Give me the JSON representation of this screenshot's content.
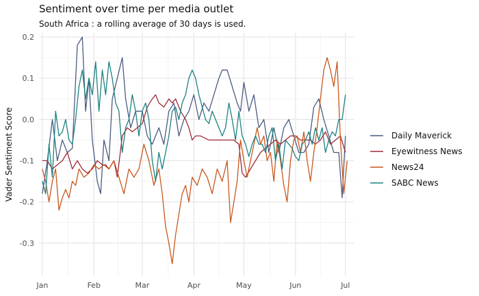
{
  "chart_data": {
    "type": "line",
    "title": "Sentiment over time per media outlet",
    "subtitle": "South Africa : a rolling average of 30 days is used.",
    "xlabel": "",
    "ylabel": "Vader Sentiment Score",
    "x_ticks": [
      "Jan",
      "Feb",
      "Mar",
      "Apr",
      "May",
      "Jun",
      "Jul"
    ],
    "y_ticks": [
      "0.2",
      "0.1",
      "0.0",
      "-0.1",
      "-0.2",
      "-0.3"
    ],
    "ylim": [
      -0.38,
      0.21
    ],
    "xlim_days": [
      -2,
      187
    ],
    "grid": true,
    "legend_position": "right",
    "series": [
      {
        "name": "Daily Maverick",
        "color": "#4a5a80",
        "points": [
          [
            0,
            -0.18
          ],
          [
            3,
            -0.1
          ],
          [
            6,
            0.0
          ],
          [
            9,
            -0.1
          ],
          [
            12,
            -0.05
          ],
          [
            15,
            -0.08
          ],
          [
            18,
            -0.07
          ],
          [
            21,
            0.18
          ],
          [
            24,
            0.2
          ],
          [
            26,
            0.02
          ],
          [
            28,
            0.1
          ],
          [
            30,
            -0.05
          ],
          [
            33,
            -0.15
          ],
          [
            35,
            -0.18
          ],
          [
            37,
            -0.05
          ],
          [
            40,
            -0.1
          ],
          [
            42,
            0.05
          ],
          [
            45,
            0.1
          ],
          [
            48,
            0.15
          ],
          [
            50,
            0.05
          ],
          [
            53,
            -0.02
          ],
          [
            56,
            0.02
          ],
          [
            60,
            0.02
          ],
          [
            63,
            -0.04
          ],
          [
            66,
            -0.06
          ],
          [
            70,
            -0.02
          ],
          [
            73,
            -0.06
          ],
          [
            76,
            0.02
          ],
          [
            79,
            0.04
          ],
          [
            82,
            -0.04
          ],
          [
            85,
            0.0
          ],
          [
            88,
            0.02
          ],
          [
            91,
            0.06
          ],
          [
            94,
            0.0
          ],
          [
            97,
            0.04
          ],
          [
            100,
            0.02
          ],
          [
            103,
            0.06
          ],
          [
            106,
            0.1
          ],
          [
            108,
            0.12
          ],
          [
            111,
            0.12
          ],
          [
            114,
            0.08
          ],
          [
            117,
            0.04
          ],
          [
            119,
            0.02
          ],
          [
            121,
            0.09
          ],
          [
            124,
            0.02
          ],
          [
            127,
            0.06
          ],
          [
            130,
            -0.02
          ],
          [
            133,
            0.0
          ],
          [
            136,
            -0.08
          ],
          [
            139,
            -0.02
          ],
          [
            142,
            -0.08
          ],
          [
            145,
            -0.02
          ],
          [
            148,
            0.0
          ],
          [
            151,
            -0.04
          ],
          [
            154,
            -0.08
          ],
          [
            157,
            -0.08
          ],
          [
            160,
            -0.06
          ],
          [
            163,
            0.03
          ],
          [
            166,
            0.05
          ],
          [
            169,
            0.0
          ],
          [
            172,
            -0.04
          ],
          [
            175,
            -0.08
          ],
          [
            178,
            -0.08
          ],
          [
            180,
            -0.19
          ],
          [
            182,
            -0.04
          ]
        ]
      },
      {
        "name": "Eyewitness News",
        "color": "#9e2a35",
        "points": [
          [
            0,
            -0.1
          ],
          [
            3,
            -0.1
          ],
          [
            6,
            -0.12
          ],
          [
            9,
            -0.11
          ],
          [
            12,
            -0.1
          ],
          [
            15,
            -0.08
          ],
          [
            18,
            -0.12
          ],
          [
            21,
            -0.1
          ],
          [
            24,
            -0.12
          ],
          [
            27,
            -0.13
          ],
          [
            30,
            -0.12
          ],
          [
            33,
            -0.1
          ],
          [
            36,
            -0.11
          ],
          [
            38,
            -0.11
          ],
          [
            40,
            -0.12
          ],
          [
            43,
            -0.1
          ],
          [
            45,
            -0.14
          ],
          [
            48,
            -0.04
          ],
          [
            51,
            -0.02
          ],
          [
            54,
            -0.03
          ],
          [
            57,
            -0.02
          ],
          [
            60,
            -0.01
          ],
          [
            63,
            0.03
          ],
          [
            66,
            0.05
          ],
          [
            68,
            0.06
          ],
          [
            70,
            0.04
          ],
          [
            73,
            0.03
          ],
          [
            76,
            0.05
          ],
          [
            78,
            0.04
          ],
          [
            80,
            0.05
          ],
          [
            83,
            0.02
          ],
          [
            86,
            0.0
          ],
          [
            88,
            -0.02
          ],
          [
            90,
            -0.05
          ],
          [
            92,
            -0.04
          ],
          [
            95,
            -0.04
          ],
          [
            100,
            -0.05
          ],
          [
            105,
            -0.05
          ],
          [
            110,
            -0.05
          ],
          [
            115,
            -0.05
          ],
          [
            118,
            -0.06
          ],
          [
            120,
            -0.13
          ],
          [
            122,
            -0.14
          ],
          [
            125,
            -0.12
          ],
          [
            128,
            -0.1
          ],
          [
            131,
            -0.08
          ],
          [
            134,
            -0.07
          ],
          [
            137,
            -0.06
          ],
          [
            140,
            -0.05
          ],
          [
            143,
            -0.06
          ],
          [
            146,
            -0.05
          ],
          [
            149,
            -0.04
          ],
          [
            152,
            -0.04
          ],
          [
            155,
            -0.05
          ],
          [
            158,
            -0.05
          ],
          [
            161,
            -0.05
          ],
          [
            164,
            -0.06
          ],
          [
            167,
            -0.05
          ],
          [
            170,
            -0.03
          ],
          [
            173,
            -0.06
          ],
          [
            176,
            -0.05
          ],
          [
            179,
            -0.04
          ],
          [
            182,
            -0.08
          ]
        ]
      },
      {
        "name": "News24",
        "color": "#c9561b",
        "points": [
          [
            0,
            -0.12
          ],
          [
            2,
            -0.15
          ],
          [
            4,
            -0.2
          ],
          [
            6,
            -0.15
          ],
          [
            8,
            -0.12
          ],
          [
            10,
            -0.22
          ],
          [
            12,
            -0.19
          ],
          [
            14,
            -0.17
          ],
          [
            16,
            -0.19
          ],
          [
            18,
            -0.15
          ],
          [
            20,
            -0.16
          ],
          [
            22,
            -0.12
          ],
          [
            25,
            -0.14
          ],
          [
            28,
            -0.13
          ],
          [
            31,
            -0.11
          ],
          [
            34,
            -0.12
          ],
          [
            37,
            -0.11
          ],
          [
            40,
            -0.12
          ],
          [
            43,
            -0.1
          ],
          [
            46,
            -0.14
          ],
          [
            49,
            -0.18
          ],
          [
            52,
            -0.12
          ],
          [
            55,
            -0.14
          ],
          [
            58,
            -0.12
          ],
          [
            61,
            -0.06
          ],
          [
            64,
            -0.1
          ],
          [
            67,
            -0.16
          ],
          [
            70,
            -0.12
          ],
          [
            72,
            -0.18
          ],
          [
            74,
            -0.26
          ],
          [
            76,
            -0.3
          ],
          [
            78,
            -0.35
          ],
          [
            80,
            -0.28
          ],
          [
            82,
            -0.23
          ],
          [
            84,
            -0.18
          ],
          [
            86,
            -0.16
          ],
          [
            88,
            -0.2
          ],
          [
            90,
            -0.14
          ],
          [
            93,
            -0.16
          ],
          [
            96,
            -0.12
          ],
          [
            99,
            -0.14
          ],
          [
            102,
            -0.18
          ],
          [
            105,
            -0.12
          ],
          [
            108,
            -0.15
          ],
          [
            111,
            -0.1
          ],
          [
            113,
            -0.25
          ],
          [
            115,
            -0.2
          ],
          [
            117,
            -0.15
          ],
          [
            119,
            -0.05
          ],
          [
            121,
            -0.1
          ],
          [
            123,
            -0.14
          ],
          [
            125,
            -0.1
          ],
          [
            127,
            -0.06
          ],
          [
            129,
            -0.02
          ],
          [
            131,
            -0.06
          ],
          [
            133,
            -0.04
          ],
          [
            135,
            -0.1
          ],
          [
            137,
            -0.08
          ],
          [
            139,
            -0.15
          ],
          [
            141,
            -0.05
          ],
          [
            143,
            -0.1
          ],
          [
            145,
            -0.16
          ],
          [
            147,
            -0.2
          ],
          [
            149,
            -0.1
          ],
          [
            151,
            -0.05
          ],
          [
            153,
            -0.04
          ],
          [
            155,
            -0.08
          ],
          [
            157,
            -0.03
          ],
          [
            159,
            -0.1
          ],
          [
            161,
            -0.15
          ],
          [
            163,
            -0.08
          ],
          [
            165,
            -0.02
          ],
          [
            167,
            0.05
          ],
          [
            169,
            0.12
          ],
          [
            171,
            0.15
          ],
          [
            173,
            0.12
          ],
          [
            175,
            0.08
          ],
          [
            177,
            0.14
          ],
          [
            179,
            -0.05
          ],
          [
            181,
            -0.18
          ],
          [
            183,
            -0.1
          ]
        ]
      },
      {
        "name": "SABC News",
        "color": "#1a8080",
        "points": [
          [
            0,
            -0.15
          ],
          [
            2,
            -0.18
          ],
          [
            4,
            -0.06
          ],
          [
            6,
            -0.14
          ],
          [
            8,
            0.02
          ],
          [
            10,
            -0.04
          ],
          [
            12,
            -0.03
          ],
          [
            14,
            0.0
          ],
          [
            16,
            -0.05
          ],
          [
            18,
            -0.06
          ],
          [
            20,
            0.0
          ],
          [
            22,
            0.08
          ],
          [
            24,
            0.12
          ],
          [
            26,
            0.05
          ],
          [
            28,
            0.1
          ],
          [
            30,
            0.06
          ],
          [
            32,
            0.14
          ],
          [
            34,
            0.02
          ],
          [
            36,
            0.12
          ],
          [
            38,
            0.06
          ],
          [
            40,
            0.14
          ],
          [
            42,
            0.1
          ],
          [
            44,
            0.04
          ],
          [
            46,
            0.02
          ],
          [
            48,
            -0.08
          ],
          [
            50,
            -0.02
          ],
          [
            52,
            0.0
          ],
          [
            54,
            0.06
          ],
          [
            56,
            0.02
          ],
          [
            58,
            -0.04
          ],
          [
            60,
            0.02
          ],
          [
            62,
            0.04
          ],
          [
            64,
            0.0
          ],
          [
            66,
            -0.1
          ],
          [
            68,
            -0.15
          ],
          [
            70,
            -0.08
          ],
          [
            72,
            -0.12
          ],
          [
            74,
            -0.08
          ],
          [
            76,
            -0.04
          ],
          [
            78,
            0.02
          ],
          [
            80,
            0.03
          ],
          [
            82,
            0.0
          ],
          [
            84,
            0.04
          ],
          [
            86,
            0.06
          ],
          [
            88,
            0.1
          ],
          [
            90,
            0.12
          ],
          [
            92,
            0.1
          ],
          [
            94,
            0.06
          ],
          [
            96,
            0.03
          ],
          [
            98,
            0.0
          ],
          [
            100,
            -0.01
          ],
          [
            102,
            0.02
          ],
          [
            104,
            0.0
          ],
          [
            106,
            -0.02
          ],
          [
            108,
            -0.04
          ],
          [
            110,
            -0.02
          ],
          [
            112,
            0.04
          ],
          [
            114,
            0.0
          ],
          [
            116,
            -0.05
          ],
          [
            118,
            0.02
          ],
          [
            120,
            -0.04
          ],
          [
            122,
            -0.06
          ],
          [
            124,
            -0.09
          ],
          [
            126,
            -0.06
          ],
          [
            128,
            -0.04
          ],
          [
            130,
            -0.06
          ],
          [
            132,
            -0.06
          ],
          [
            134,
            -0.08
          ],
          [
            136,
            -0.04
          ],
          [
            138,
            -0.02
          ],
          [
            140,
            -0.1
          ],
          [
            142,
            -0.06
          ],
          [
            144,
            -0.12
          ],
          [
            146,
            -0.05
          ],
          [
            148,
            -0.06
          ],
          [
            150,
            -0.07
          ],
          [
            152,
            -0.09
          ],
          [
            154,
            -0.1
          ],
          [
            156,
            -0.06
          ],
          [
            158,
            -0.05
          ],
          [
            160,
            -0.03
          ],
          [
            162,
            -0.06
          ],
          [
            164,
            -0.02
          ],
          [
            166,
            -0.05
          ],
          [
            168,
            -0.02
          ],
          [
            170,
            -0.08
          ],
          [
            172,
            -0.05
          ],
          [
            174,
            -0.03
          ],
          [
            176,
            -0.04
          ],
          [
            178,
            0.0
          ],
          [
            180,
            0.0
          ],
          [
            182,
            0.06
          ]
        ]
      }
    ]
  }
}
